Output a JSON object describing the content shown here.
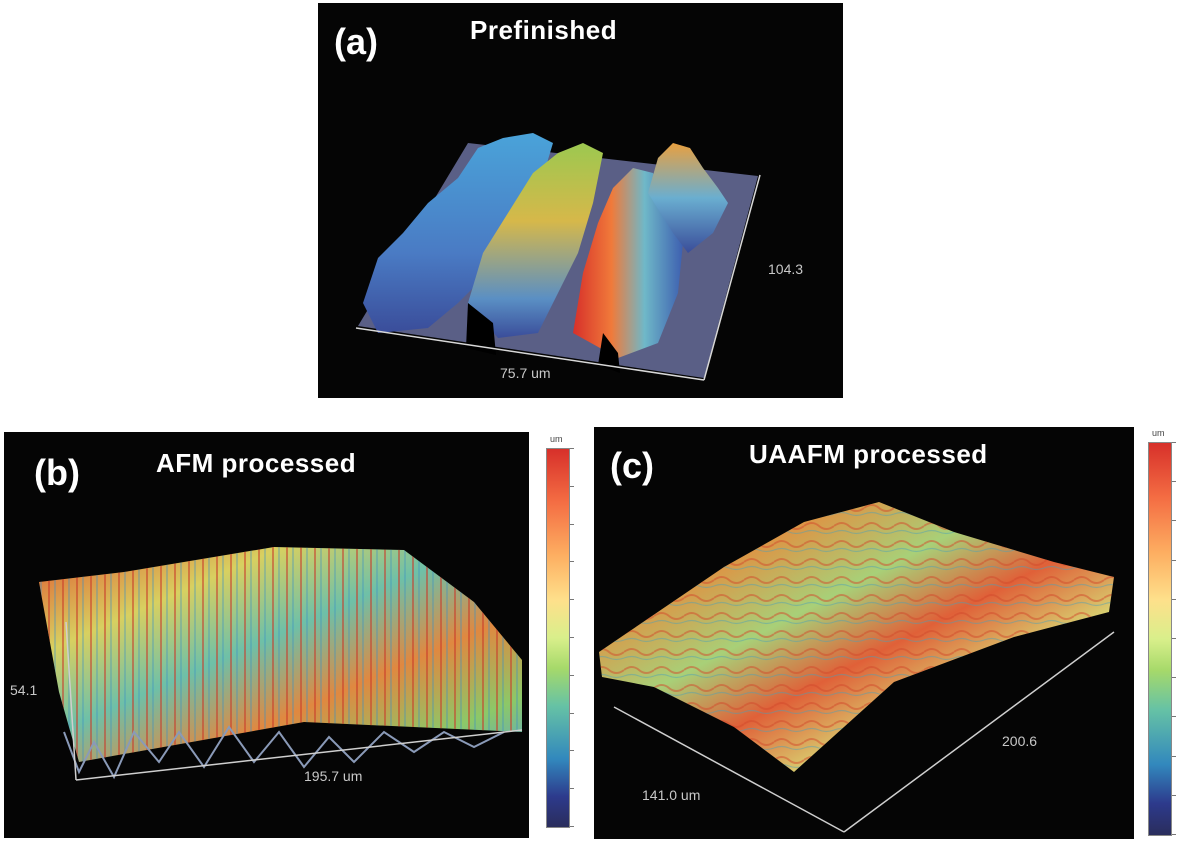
{
  "panels": {
    "a": {
      "letter": "(a)",
      "title": "Prefinished",
      "dim_x": "75.7 um",
      "dim_y": "104.3"
    },
    "b": {
      "letter": "(b)",
      "title": "AFM processed",
      "dim_x": "195.7 um",
      "dim_y": "54.1"
    },
    "c": {
      "letter": "(c)",
      "title": "UAAFM processed",
      "dim_x": "141.0 um",
      "dim_y": "200.6"
    }
  },
  "colorbar": {
    "unit": "um"
  }
}
